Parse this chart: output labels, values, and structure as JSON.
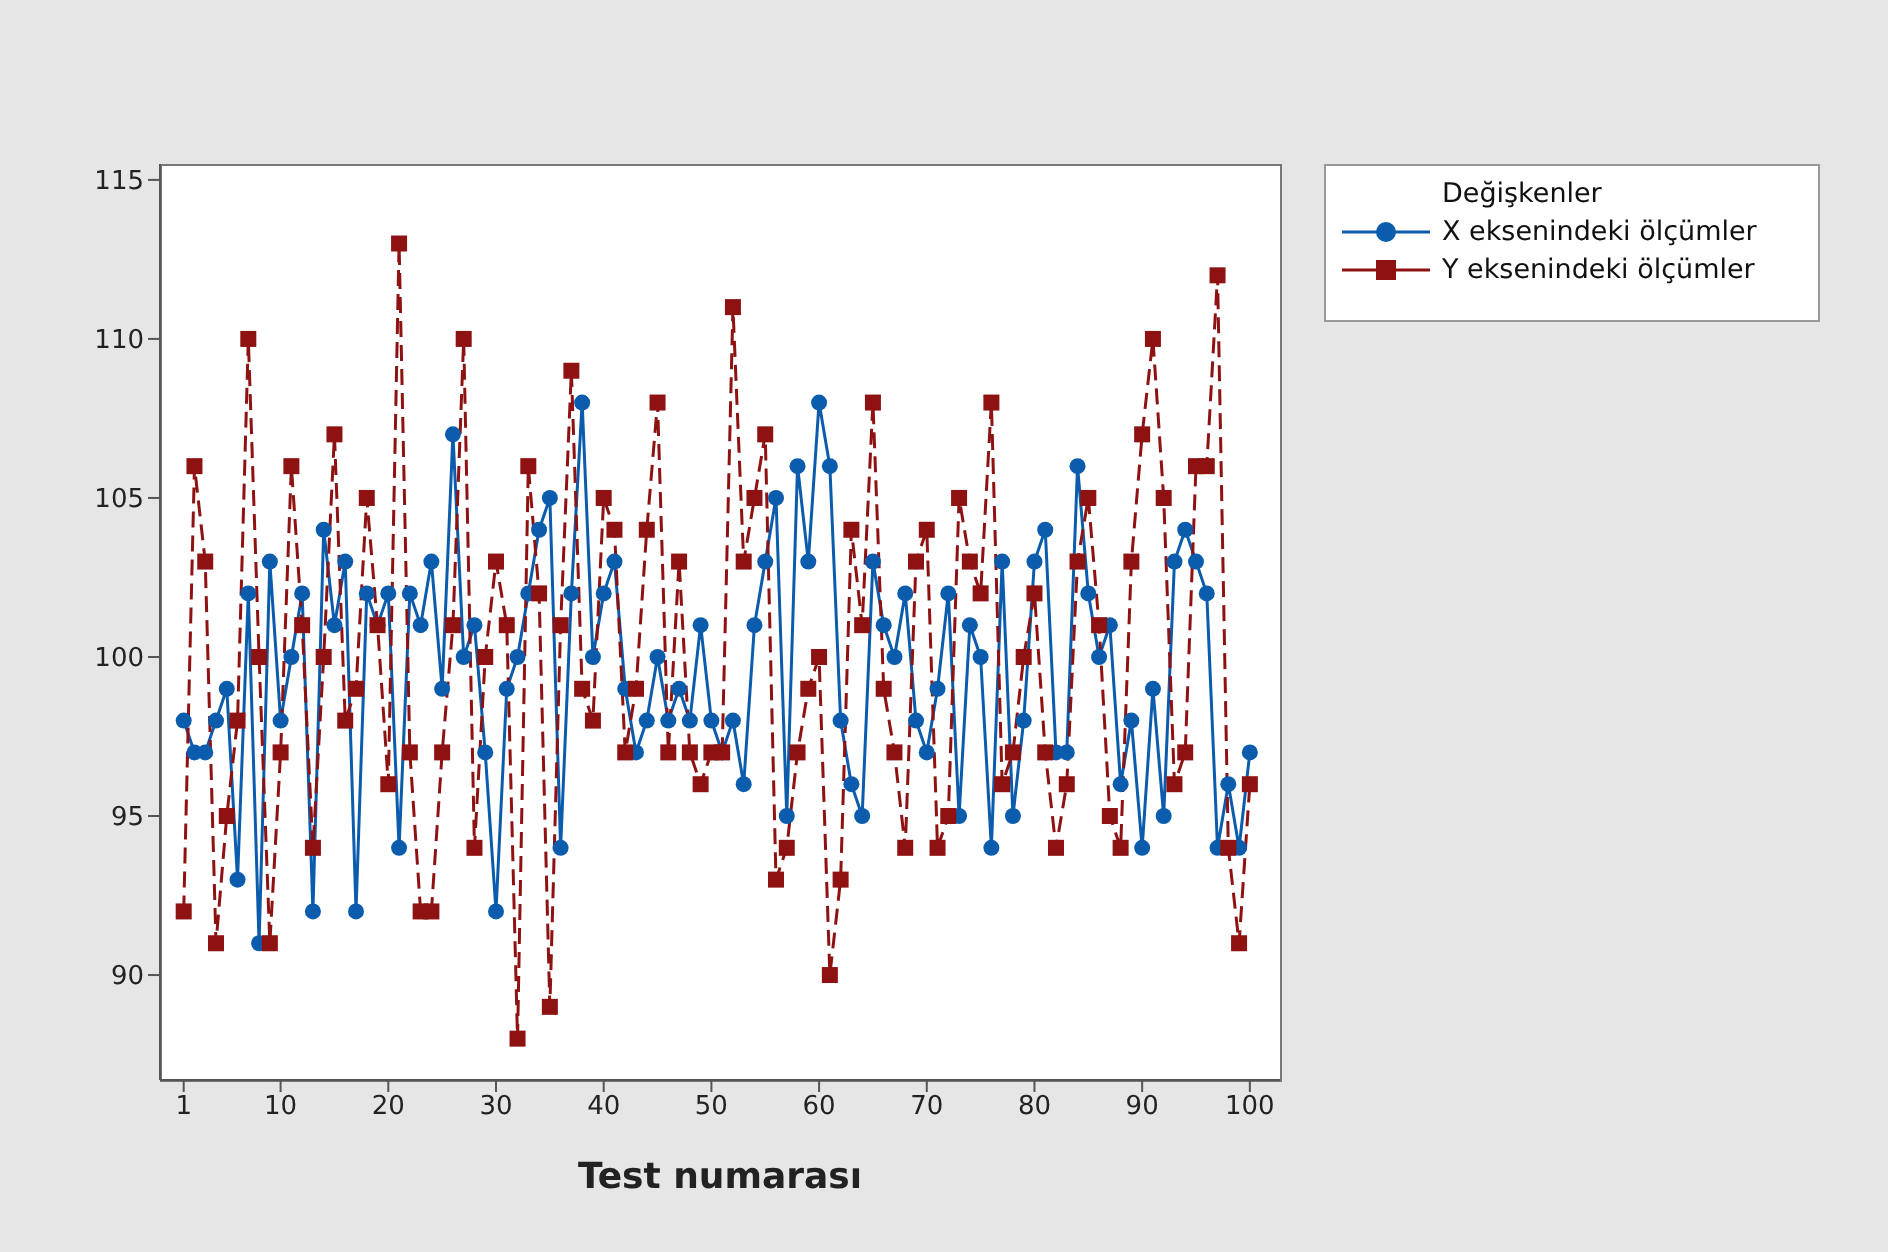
{
  "chart_data": {
    "type": "line",
    "xlabel": "Test numarası",
    "legend_title": "Değişkenler",
    "legend": "right",
    "grid": false,
    "x": [
      1,
      2,
      3,
      4,
      5,
      6,
      7,
      8,
      9,
      10,
      11,
      12,
      13,
      14,
      15,
      16,
      17,
      18,
      19,
      20,
      21,
      22,
      23,
      24,
      25,
      26,
      27,
      28,
      29,
      30,
      31,
      32,
      33,
      34,
      35,
      36,
      37,
      38,
      39,
      40,
      41,
      42,
      43,
      44,
      45,
      46,
      47,
      48,
      49,
      50,
      51,
      52,
      53,
      54,
      55,
      56,
      57,
      58,
      59,
      60,
      61,
      62,
      63,
      64,
      65,
      66,
      67,
      68,
      69,
      70,
      71,
      72,
      73,
      74,
      75,
      76,
      77,
      78,
      79,
      80,
      81,
      82,
      83,
      84,
      85,
      86,
      87,
      88,
      89,
      90,
      91,
      92,
      93,
      94,
      95,
      96,
      97,
      98,
      99,
      100
    ],
    "xlim": [
      -1.2,
      102.8
    ],
    "xticks": [
      1,
      10,
      20,
      30,
      40,
      50,
      60,
      70,
      80,
      90,
      100
    ],
    "ylim": [
      86.7,
      115.5
    ],
    "yticks": [
      90,
      95,
      100,
      105,
      110,
      115
    ],
    "series": [
      {
        "name": "X eksenindeki ölçümler",
        "color": "#0b5cad",
        "marker": "circle",
        "line_style": "solid",
        "values": [
          98,
          97,
          97,
          98,
          99,
          93,
          102,
          91,
          103,
          98,
          100,
          102,
          92,
          104,
          101,
          103,
          92,
          102,
          101,
          102,
          94,
          102,
          101,
          103,
          99,
          107,
          100,
          101,
          97,
          92,
          99,
          100,
          102,
          104,
          105,
          94,
          102,
          108,
          100,
          102,
          103,
          99,
          97,
          98,
          100,
          98,
          99,
          98,
          101,
          98,
          97,
          98,
          96,
          101,
          103,
          105,
          95,
          106,
          103,
          108,
          106,
          98,
          96,
          95,
          103,
          101,
          100,
          102,
          98,
          97,
          99,
          102,
          95,
          101,
          100,
          94,
          103,
          95,
          98,
          103,
          104,
          97,
          97,
          106,
          102,
          100,
          101,
          96,
          98,
          94,
          99,
          95,
          103,
          104,
          103,
          102,
          94,
          96,
          94,
          97
        ]
      },
      {
        "name": "Y eksenindeki ölçümler",
        "color": "#8e1212",
        "marker": "square",
        "line_style": "dashed",
        "values": [
          92,
          106,
          103,
          91,
          95,
          98,
          110,
          100,
          91,
          97,
          106,
          101,
          94,
          100,
          107,
          98,
          99,
          105,
          101,
          96,
          113,
          97,
          92,
          92,
          97,
          101,
          110,
          94,
          100,
          103,
          101,
          88,
          106,
          102,
          89,
          101,
          109,
          99,
          98,
          105,
          104,
          97,
          99,
          104,
          108,
          97,
          103,
          97,
          96,
          97,
          97,
          111,
          103,
          105,
          107,
          93,
          94,
          97,
          99,
          100,
          90,
          93,
          104,
          101,
          108,
          99,
          97,
          94,
          103,
          104,
          94,
          95,
          105,
          103,
          102,
          108,
          96,
          97,
          100,
          102,
          97,
          94,
          96,
          103,
          105,
          101,
          95,
          94,
          103,
          107,
          110,
          105,
          96,
          97,
          106,
          106,
          112,
          94,
          91,
          96
        ]
      }
    ]
  }
}
